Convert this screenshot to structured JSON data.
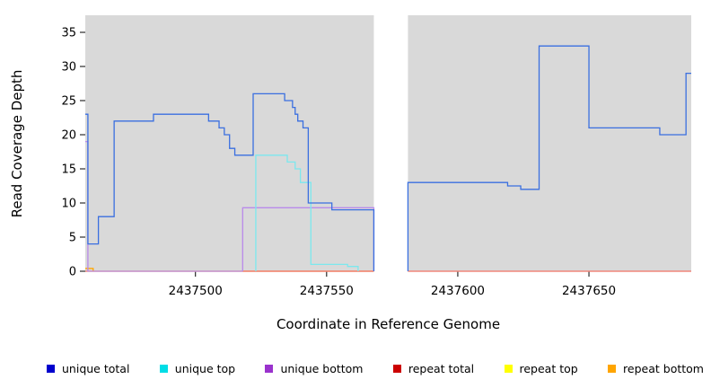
{
  "figure": {
    "x_axis_label": "Coordinate in Reference Genome",
    "y_axis_label": "Read Coverage Depth"
  },
  "chart_data": {
    "type": "line",
    "step_style": true,
    "title": "",
    "xlabel": "Coordinate in Reference Genome",
    "ylabel": "Read Coverage Depth",
    "xlim": [
      2437458,
      2437689
    ],
    "ylim": [
      0,
      37.5
    ],
    "x_ticks": [
      2437500,
      2437550,
      2437600,
      2437650
    ],
    "y_ticks": [
      0,
      5,
      10,
      15,
      20,
      25,
      30,
      35
    ],
    "plot_background": "#d9d9d9",
    "gap_region": [
      2437568,
      2437581
    ],
    "axis_color": "#000000",
    "draw_order": [
      4,
      5,
      3,
      2,
      1,
      0
    ],
    "series": [
      {
        "name": "unique total",
        "line_color": "#3a6fe0",
        "legend_color": "#0000cd",
        "segments": [
          {
            "from_zero": false,
            "to_zero": true,
            "xend": 2437568,
            "points": [
              [
                2437458,
                23
              ],
              [
                2437459,
                4
              ],
              [
                2437463,
                8
              ],
              [
                2437469,
                22
              ],
              [
                2437484,
                23
              ],
              [
                2437505,
                22
              ],
              [
                2437509,
                21
              ],
              [
                2437511,
                20
              ],
              [
                2437513,
                18
              ],
              [
                2437515,
                17
              ],
              [
                2437522,
                26
              ],
              [
                2437534,
                25
              ],
              [
                2437537,
                24
              ],
              [
                2437538,
                23
              ],
              [
                2437539,
                22
              ],
              [
                2437541,
                21
              ],
              [
                2437543,
                10
              ],
              [
                2437552,
                9
              ]
            ]
          },
          {
            "from_zero": true,
            "to_zero": false,
            "xend": 2437689,
            "points": [
              [
                2437581,
                13
              ],
              [
                2437619,
                12.5
              ],
              [
                2437624,
                12
              ],
              [
                2437631,
                33
              ],
              [
                2437650,
                21
              ],
              [
                2437677,
                20
              ],
              [
                2437687,
                29
              ]
            ]
          }
        ]
      },
      {
        "name": "unique top",
        "line_color": "#7ce8ee",
        "legend_color": "#00dde6",
        "segments": [
          {
            "from_zero": true,
            "to_zero": true,
            "xend": 2437562,
            "points": [
              [
                2437523,
                17
              ],
              [
                2437535,
                16
              ],
              [
                2437538,
                15
              ],
              [
                2437540,
                13
              ],
              [
                2437544,
                1
              ],
              [
                2437558,
                0.7
              ]
            ]
          }
        ]
      },
      {
        "name": "unique bottom",
        "line_color": "#b98aea",
        "legend_color": "#9a32cd",
        "segments": [
          {
            "from_zero": false,
            "to_zero": false,
            "xend": 2437518,
            "points": [
              [
                2437458,
                19
              ],
              [
                2437459,
                0
              ]
            ]
          },
          {
            "from_zero": true,
            "to_zero": true,
            "xend": 2437568,
            "points": [
              [
                2437518,
                9.3
              ]
            ]
          }
        ]
      },
      {
        "name": "repeat total",
        "line_color": "#ef7088",
        "legend_color": "#cc0000",
        "segments": [
          {
            "from_zero": false,
            "to_zero": false,
            "xend": 2437568,
            "points": [
              [
                2437458,
                0
              ]
            ]
          },
          {
            "from_zero": false,
            "to_zero": false,
            "xend": 2437689,
            "points": [
              [
                2437581,
                0
              ]
            ]
          }
        ]
      },
      {
        "name": "repeat top",
        "line_color": "#ffff00",
        "legend_color": "#ffff00",
        "segments": [
          {
            "from_zero": false,
            "to_zero": false,
            "xend": 2437568,
            "points": [
              [
                2437458,
                0
              ]
            ]
          },
          {
            "from_zero": false,
            "to_zero": false,
            "xend": 2437689,
            "points": [
              [
                2437581,
                0
              ]
            ]
          }
        ]
      },
      {
        "name": "repeat bottom",
        "line_color": "#ffa500",
        "legend_color": "#ffa500",
        "segments": [
          {
            "from_zero": false,
            "to_zero": true,
            "xend": 2437461,
            "points": [
              [
                2437458,
                0.4
              ]
            ]
          },
          {
            "from_zero": false,
            "to_zero": false,
            "xend": 2437568,
            "points": [
              [
                2437518,
                0
              ]
            ]
          }
        ]
      }
    ],
    "legend_labels": [
      "unique total",
      "unique top",
      "unique bottom",
      "repeat total",
      "repeat top",
      "repeat bottom"
    ]
  }
}
